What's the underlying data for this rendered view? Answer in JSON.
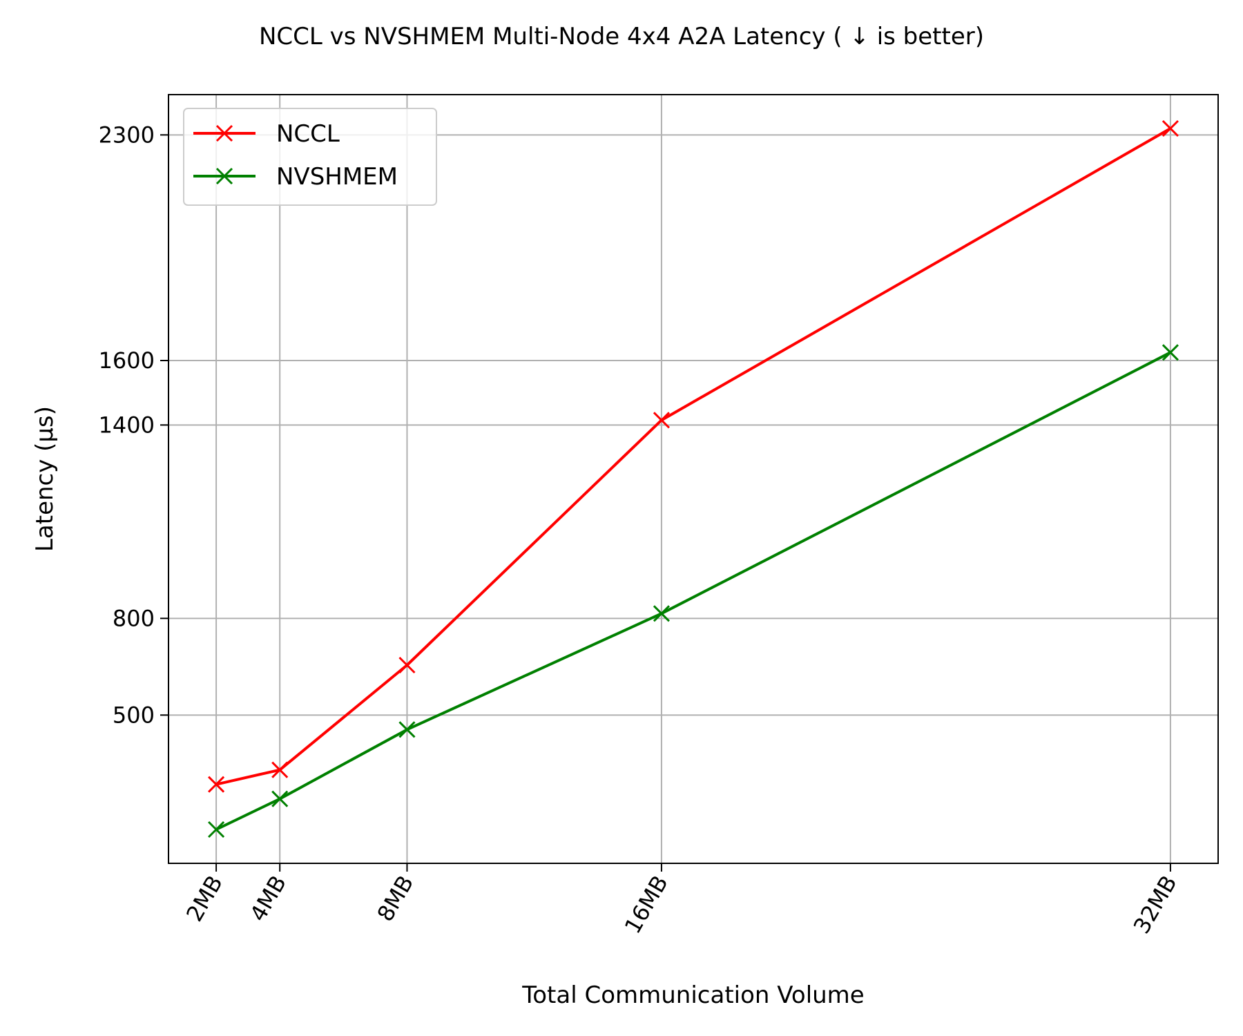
{
  "chart_data": {
    "type": "line",
    "title": "NCCL vs NVSHMEM Multi-Node 4x4 A2A Latency ( ↓  is better)",
    "xlabel": "Total Communication Volume",
    "ylabel": "Latency (μs)",
    "x": [
      2,
      4,
      8,
      16,
      32
    ],
    "x_tick_labels": [
      "2MB",
      "4MB",
      "8MB",
      "16MB",
      "32MB"
    ],
    "y_ticks": [
      500,
      800,
      1400,
      1600,
      2300
    ],
    "xlim": [
      0.5,
      33.5
    ],
    "ylim": [
      40,
      2425
    ],
    "grid": true,
    "legend_position": "top-left",
    "series": [
      {
        "name": "NCCL",
        "color": "#ff0000",
        "marker": "x",
        "values": [
          285,
          330,
          655,
          1415,
          2320
        ]
      },
      {
        "name": "NVSHMEM",
        "color": "#008000",
        "marker": "x",
        "values": [
          145,
          240,
          455,
          815,
          1625
        ]
      }
    ]
  }
}
